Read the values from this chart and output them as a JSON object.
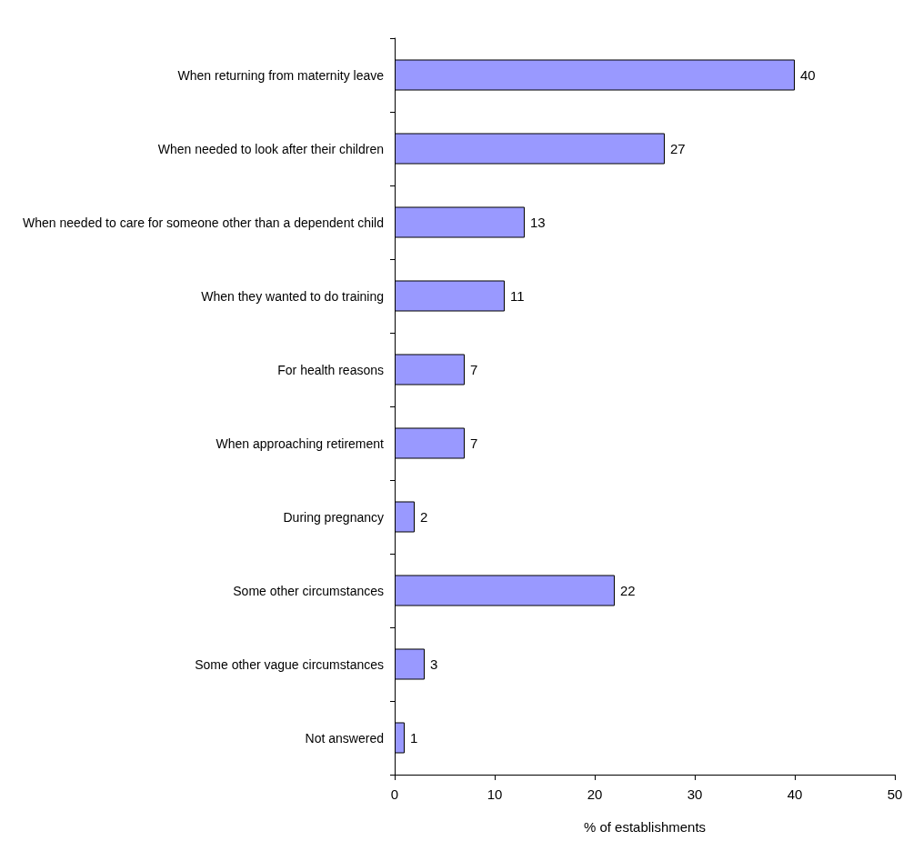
{
  "chart_data": {
    "type": "bar",
    "orientation": "horizontal",
    "xlabel": "% of establishments",
    "categories": [
      "When returning from maternity leave",
      "When needed to look after their children",
      "When needed to care for someone other than a dependent child",
      "When they wanted to do training",
      "For health reasons",
      "When approaching retirement",
      "During pregnancy",
      "Some other circumstances",
      "Some other vague circumstances",
      "Not answered"
    ],
    "values": [
      40,
      27,
      13,
      11,
      7,
      7,
      2,
      22,
      3,
      1
    ],
    "color": "#9999ff",
    "xlim": [
      0,
      50
    ],
    "xticks": [
      0,
      10,
      20,
      30,
      40,
      50
    ],
    "data_labels": true,
    "grid": false
  }
}
